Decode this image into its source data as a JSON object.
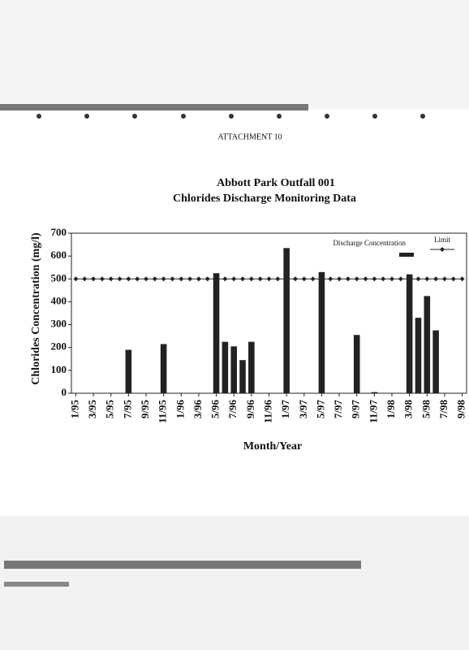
{
  "header": "ATTACHMENT 10",
  "chart_data": {
    "type": "bar",
    "title": "Abbott Park Outfall 001",
    "subtitle": "Chlorides Discharge Monitoring Data",
    "x_label": "Month/Year",
    "y_label": "Chlorides Concentration (mg/l)",
    "categories": [
      "1/95",
      null,
      "3/95",
      null,
      "5/95",
      null,
      "7/95",
      null,
      "9/95",
      null,
      "11/95",
      null,
      "1/96",
      null,
      "3/96",
      null,
      "5/96",
      null,
      "7/96",
      null,
      "9/96",
      null,
      "11/96",
      null,
      "1/97",
      null,
      "3/97",
      null,
      "5/97",
      null,
      "7/97",
      null,
      "9/97",
      null,
      "11/97",
      null,
      "1/98",
      null,
      "3/98",
      null,
      "5/98",
      null,
      "7/98",
      null,
      "9/98"
    ],
    "series": [
      {
        "name": "Discharge Concentration",
        "color": "#222222",
        "values": [
          null,
          null,
          null,
          null,
          null,
          null,
          190,
          null,
          null,
          null,
          215,
          null,
          null,
          null,
          null,
          null,
          525,
          225,
          205,
          145,
          225,
          null,
          null,
          null,
          635,
          null,
          null,
          null,
          530,
          null,
          null,
          null,
          255,
          null,
          5,
          null,
          null,
          null,
          520,
          330,
          425,
          275,
          null,
          null,
          null
        ]
      },
      {
        "name": "Limit",
        "color": "#222222",
        "values": [
          500,
          500,
          500,
          500,
          500,
          500,
          500,
          500,
          500,
          500,
          500,
          500,
          500,
          500,
          500,
          500,
          500,
          500,
          500,
          500,
          500,
          500,
          500,
          500,
          500,
          500,
          500,
          500,
          500,
          500,
          500,
          500,
          500,
          500,
          500,
          500,
          500,
          500,
          500,
          500,
          500,
          500,
          500,
          500,
          500
        ]
      }
    ],
    "ylim": [
      0,
      700
    ],
    "yticks": [
      0,
      100,
      200,
      300,
      400,
      500,
      600,
      700
    ],
    "legend": "upper right"
  }
}
